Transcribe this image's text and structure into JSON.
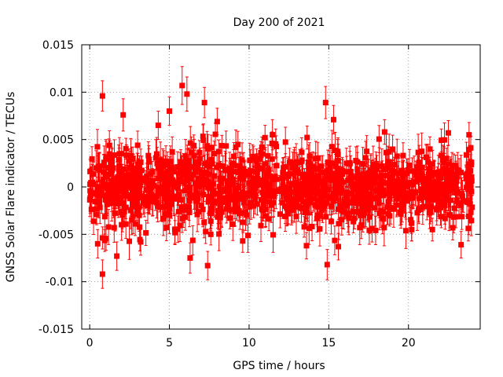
{
  "chart_data": {
    "type": "scatter",
    "title": "Day 200 of 2021",
    "xlabel": "GPS time / hours",
    "ylabel": "GNSS Solar Flare indicator / TECUs",
    "xlim": [
      -0.5,
      24.5
    ],
    "ylim": [
      -0.015,
      0.015
    ],
    "x_ticks": [
      0,
      5,
      10,
      15,
      20
    ],
    "x_tick_labels": [
      "0",
      "5",
      "10",
      "15",
      "20"
    ],
    "y_ticks": [
      -0.015,
      -0.01,
      -0.005,
      0,
      0.005,
      0.01,
      0.015
    ],
    "y_tick_labels": [
      "-0.015",
      "-0.01",
      "-0.005",
      "0",
      "0.005",
      "0.01",
      "0.015"
    ],
    "grid": true,
    "legend": "none",
    "series": [
      {
        "color": "#ff0000",
        "marker": "square",
        "error_bars": true,
        "x_range": [
          0,
          24
        ],
        "typical_spread": 0.0035,
        "typical_error": 0.0015,
        "points": [
          {
            "x": 0.8,
            "y": 0.0096,
            "err": 0.0016
          },
          {
            "x": 0.8,
            "y": -0.0092,
            "err": 0.0015
          },
          {
            "x": 0.1,
            "y": -0.0006,
            "err": 0.001
          },
          {
            "x": 0.5,
            "y": -0.006,
            "err": 0.0015
          },
          {
            "x": 1.7,
            "y": -0.0073,
            "err": 0.0015
          },
          {
            "x": 2.1,
            "y": 0.0076,
            "err": 0.0017
          },
          {
            "x": 3.2,
            "y": -0.0058,
            "err": 0.0014
          },
          {
            "x": 4.3,
            "y": 0.0065,
            "err": 0.0015
          },
          {
            "x": 5.0,
            "y": 0.008,
            "err": 0.0015
          },
          {
            "x": 5.8,
            "y": 0.0107,
            "err": 0.002
          },
          {
            "x": 6.1,
            "y": 0.0098,
            "err": 0.0018
          },
          {
            "x": 6.3,
            "y": -0.0075,
            "err": 0.0016
          },
          {
            "x": 7.2,
            "y": 0.0089,
            "err": 0.0016
          },
          {
            "x": 7.4,
            "y": -0.0083,
            "err": 0.0015
          },
          {
            "x": 8.0,
            "y": 0.0069,
            "err": 0.0014
          },
          {
            "x": 9.6,
            "y": -0.0057,
            "err": 0.0012
          },
          {
            "x": 11.0,
            "y": 0.0052,
            "err": 0.0013
          },
          {
            "x": 13.6,
            "y": -0.0062,
            "err": 0.0014
          },
          {
            "x": 14.8,
            "y": 0.0089,
            "err": 0.0017
          },
          {
            "x": 14.9,
            "y": -0.0082,
            "err": 0.0016
          },
          {
            "x": 15.3,
            "y": 0.0071,
            "err": 0.0015
          },
          {
            "x": 15.6,
            "y": -0.0063,
            "err": 0.0014
          },
          {
            "x": 18.5,
            "y": 0.0058,
            "err": 0.0013
          },
          {
            "x": 20.2,
            "y": -0.0045,
            "err": 0.0012
          },
          {
            "x": 21.5,
            "y": -0.0045,
            "err": 0.0012
          },
          {
            "x": 22.5,
            "y": 0.0057,
            "err": 0.0013
          },
          {
            "x": 23.3,
            "y": -0.0061,
            "err": 0.0014
          },
          {
            "x": 23.8,
            "y": 0.0055,
            "err": 0.0013
          }
        ]
      }
    ]
  }
}
